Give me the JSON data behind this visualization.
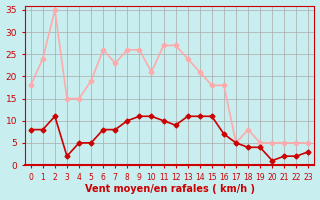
{
  "x": [
    0,
    1,
    2,
    3,
    4,
    5,
    6,
    7,
    8,
    9,
    10,
    11,
    12,
    13,
    14,
    15,
    16,
    17,
    18,
    19,
    20,
    21,
    22,
    23
  ],
  "wind_avg": [
    8,
    8,
    11,
    2,
    5,
    5,
    8,
    8,
    10,
    11,
    11,
    10,
    9,
    11,
    11,
    11,
    7,
    5,
    4,
    4,
    1,
    2,
    2,
    3
  ],
  "wind_gust": [
    18,
    24,
    35,
    15,
    15,
    19,
    26,
    23,
    26,
    26,
    21,
    27,
    27,
    24,
    21,
    18,
    18,
    5,
    8,
    5,
    5,
    5,
    5,
    5
  ],
  "bg_color": "#c8eef0",
  "grid_color": "#aaaaaa",
  "line_avg_color": "#cc0000",
  "line_gust_color": "#ffaaaa",
  "xlabel": "Vent moyen/en rafales ( km/h )",
  "xlabel_color": "#cc0000",
  "tick_color": "#cc0000",
  "ylim": [
    0,
    36
  ],
  "yticks": [
    0,
    5,
    10,
    15,
    20,
    25,
    30,
    35
  ],
  "xticks": [
    0,
    1,
    2,
    3,
    4,
    5,
    6,
    7,
    8,
    9,
    10,
    11,
    12,
    13,
    14,
    15,
    16,
    17,
    18,
    19,
    20,
    21,
    22,
    23
  ]
}
